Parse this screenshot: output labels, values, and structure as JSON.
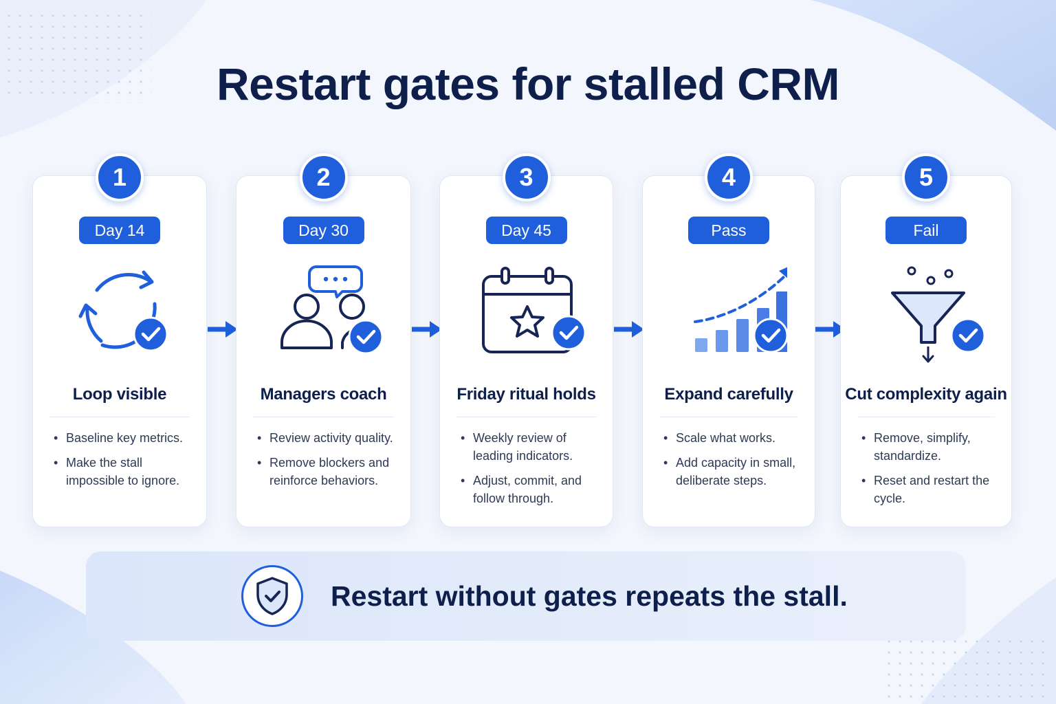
{
  "title": "Restart gates for stalled CRM",
  "colors": {
    "primary": "#1f5fdc",
    "heading": "#0f1f4b",
    "text": "#2d3a55",
    "card": "#ffffff"
  },
  "steps": [
    {
      "number": "1",
      "badge": "Day 14",
      "icon": "refresh-cycle-icon",
      "title": "Loop visible",
      "bullets": [
        "Baseline key metrics.",
        "Make the stall impossible to ignore."
      ]
    },
    {
      "number": "2",
      "badge": "Day 30",
      "icon": "coaching-people-icon",
      "title": "Managers coach",
      "bullets": [
        "Review activity quality.",
        "Remove blockers and reinforce behaviors."
      ]
    },
    {
      "number": "3",
      "badge": "Day 45",
      "icon": "calendar-star-icon",
      "title": "Friday ritual holds",
      "bullets": [
        "Weekly review of leading indicators.",
        "Adjust, commit, and follow through."
      ]
    },
    {
      "number": "4",
      "badge": "Pass",
      "icon": "growth-chart-icon",
      "title": "Expand carefully",
      "bullets": [
        "Scale what works.",
        "Add capacity in small, deliberate steps."
      ]
    },
    {
      "number": "5",
      "badge": "Fail",
      "icon": "funnel-icon",
      "title": "Cut complexity again",
      "bullets": [
        "Remove, simplify, standardize.",
        "Reset and restart the cycle."
      ]
    }
  ],
  "banner": {
    "icon": "shield-check-icon",
    "text": "Restart without gates repeats the stall."
  }
}
